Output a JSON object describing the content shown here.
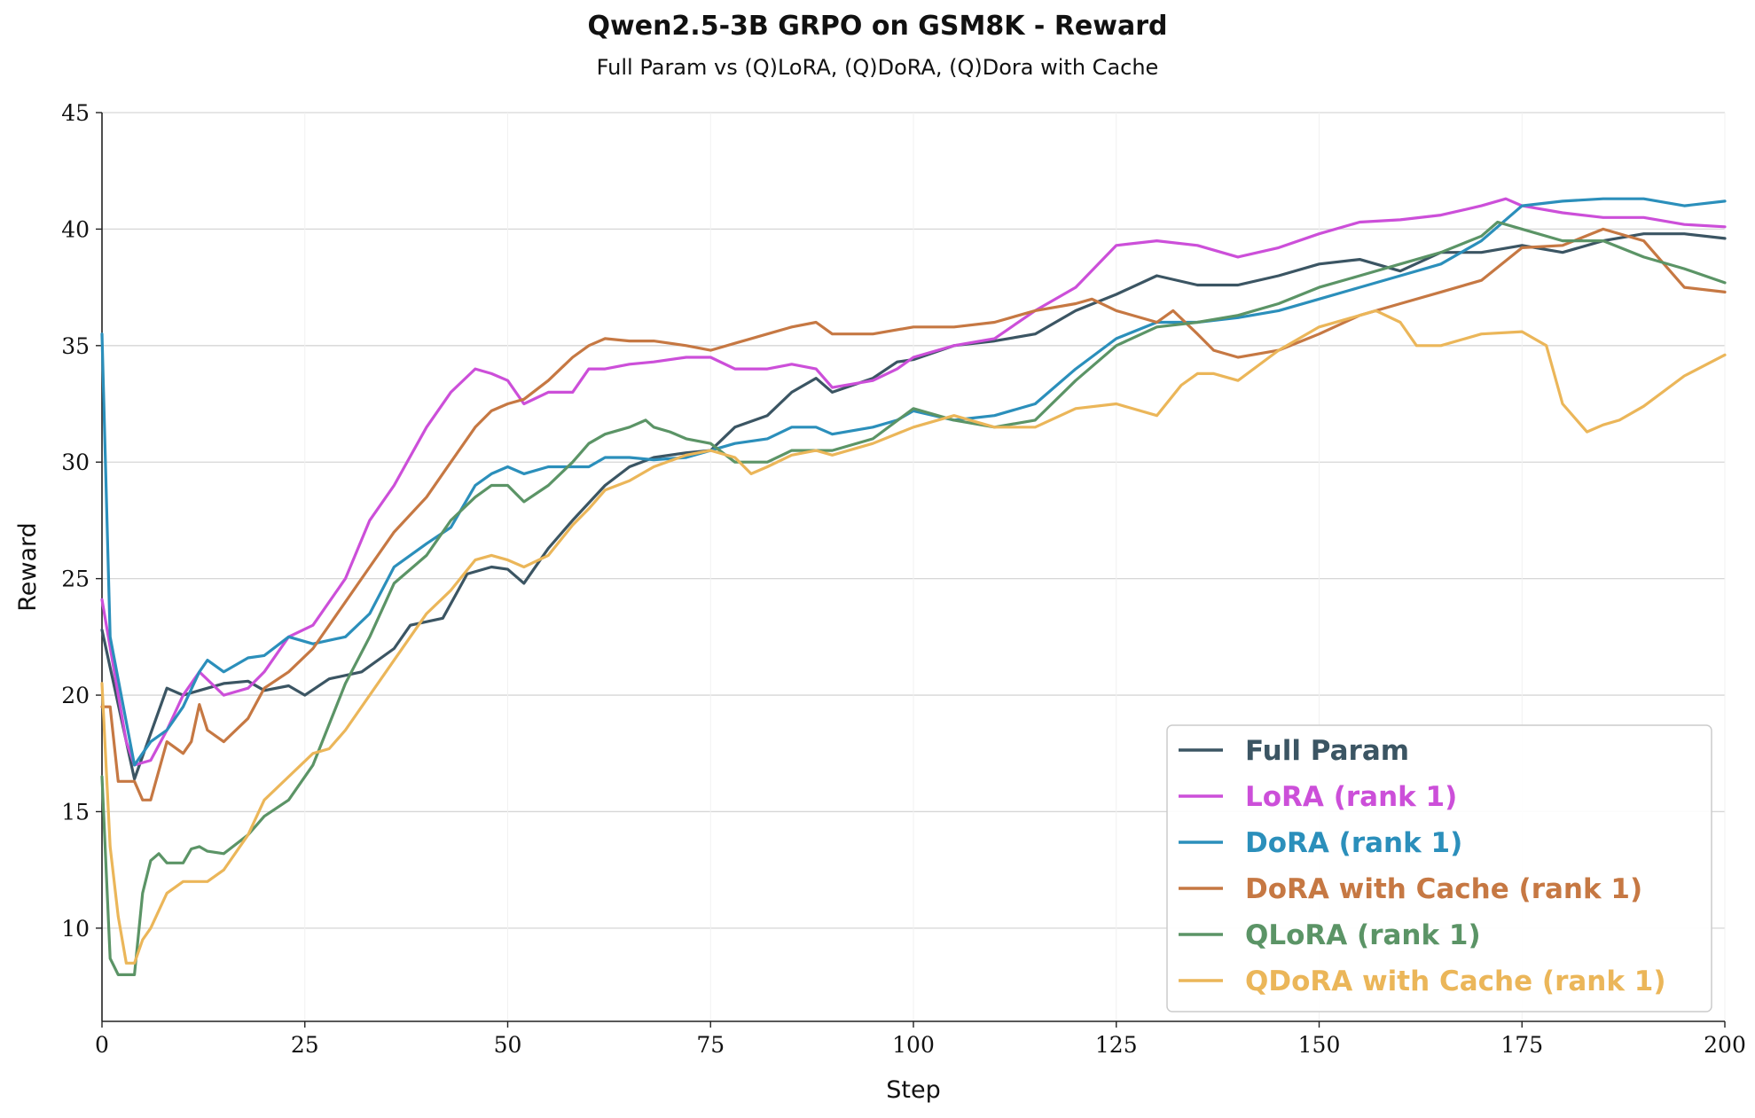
{
  "chart_data": {
    "type": "line",
    "title": "Qwen2.5-3B GRPO on GSM8K - Reward",
    "subtitle": "Full Param vs (Q)LoRA, (Q)DoRA, (Q)Dora with Cache",
    "xlabel": "Step",
    "ylabel": "Reward",
    "xlim": [
      0,
      200
    ],
    "ylim": [
      6,
      45
    ],
    "xticks": [
      0,
      25,
      50,
      75,
      100,
      125,
      150,
      175,
      200
    ],
    "yticks": [
      10,
      15,
      20,
      25,
      30,
      35,
      40,
      45
    ],
    "grid": "horizontal",
    "legend_position": "lower-right",
    "series": [
      {
        "name": "Full Param",
        "color": "#3b5563",
        "x": [
          0,
          4,
          8,
          10,
          12,
          15,
          18,
          20,
          23,
          25,
          28,
          32,
          36,
          38,
          42,
          45,
          48,
          50,
          52,
          55,
          58,
          62,
          65,
          68,
          72,
          75,
          78,
          82,
          85,
          88,
          90,
          95,
          98,
          100,
          105,
          110,
          115,
          120,
          125,
          130,
          135,
          140,
          145,
          150,
          155,
          160,
          165,
          170,
          175,
          180,
          185,
          190,
          195,
          200
        ],
        "y": [
          22.8,
          16.4,
          20.3,
          20.0,
          20.2,
          20.5,
          20.6,
          20.2,
          20.4,
          20.0,
          20.7,
          21.0,
          22.0,
          23.0,
          23.3,
          25.2,
          25.5,
          25.4,
          24.8,
          26.3,
          27.5,
          29.0,
          29.8,
          30.2,
          30.4,
          30.5,
          31.5,
          32.0,
          33.0,
          33.6,
          33.0,
          33.6,
          34.3,
          34.4,
          35.0,
          35.2,
          35.5,
          36.5,
          37.2,
          38.0,
          37.6,
          37.6,
          38.0,
          38.5,
          38.7,
          38.2,
          39.0,
          39.0,
          39.3,
          39.0,
          39.5,
          39.8,
          39.8,
          39.6
        ]
      },
      {
        "name": "LoRA (rank 1)",
        "color": "#cc4fd9",
        "x": [
          0,
          3,
          4,
          6,
          8,
          10,
          12,
          15,
          18,
          20,
          23,
          26,
          30,
          33,
          36,
          40,
          43,
          46,
          48,
          50,
          52,
          55,
          58,
          60,
          62,
          65,
          68,
          72,
          75,
          78,
          82,
          85,
          88,
          90,
          95,
          98,
          100,
          105,
          110,
          115,
          120,
          125,
          130,
          135,
          140,
          145,
          150,
          155,
          160,
          165,
          170,
          173,
          175,
          180,
          185,
          190,
          195,
          200
        ],
        "y": [
          24.1,
          18.0,
          17.0,
          17.2,
          18.5,
          20.0,
          21.0,
          20.0,
          20.3,
          21.0,
          22.5,
          23.0,
          25.0,
          27.5,
          29.0,
          31.5,
          33.0,
          34.0,
          33.8,
          33.5,
          32.5,
          33.0,
          33.0,
          34.0,
          34.0,
          34.2,
          34.3,
          34.5,
          34.5,
          34.0,
          34.0,
          34.2,
          34.0,
          33.2,
          33.5,
          34.0,
          34.5,
          35.0,
          35.3,
          36.5,
          37.5,
          39.3,
          39.5,
          39.3,
          38.8,
          39.2,
          39.8,
          40.3,
          40.4,
          40.6,
          41.0,
          41.3,
          41.0,
          40.7,
          40.5,
          40.5,
          40.2,
          40.1
        ]
      },
      {
        "name": "DoRA (rank 1)",
        "color": "#2b8fbb",
        "x": [
          0,
          1,
          4,
          6,
          8,
          10,
          12,
          13,
          15,
          18,
          20,
          23,
          26,
          30,
          33,
          36,
          40,
          43,
          46,
          48,
          50,
          52,
          55,
          58,
          60,
          62,
          65,
          68,
          72,
          75,
          78,
          82,
          85,
          88,
          90,
          95,
          98,
          100,
          105,
          110,
          115,
          120,
          125,
          130,
          135,
          140,
          145,
          150,
          155,
          160,
          165,
          170,
          175,
          180,
          185,
          190,
          195,
          200
        ],
        "y": [
          35.5,
          22.5,
          17.0,
          18.0,
          18.5,
          19.5,
          21.0,
          21.5,
          21.0,
          21.6,
          21.7,
          22.5,
          22.2,
          22.5,
          23.5,
          25.5,
          26.5,
          27.2,
          29.0,
          29.5,
          29.8,
          29.5,
          29.8,
          29.8,
          29.8,
          30.2,
          30.2,
          30.1,
          30.2,
          30.5,
          30.8,
          31.0,
          31.5,
          31.5,
          31.2,
          31.5,
          31.8,
          32.2,
          31.8,
          32.0,
          32.5,
          34.0,
          35.3,
          36.0,
          36.0,
          36.2,
          36.5,
          37.0,
          37.5,
          38.0,
          38.5,
          39.5,
          41.0,
          41.2,
          41.3,
          41.3,
          41.0,
          41.2
        ]
      },
      {
        "name": "DoRA with Cache (rank 1)",
        "color": "#c67843",
        "x": [
          0,
          1,
          2,
          4,
          5,
          6,
          8,
          10,
          11,
          12,
          13,
          15,
          18,
          20,
          23,
          26,
          30,
          33,
          36,
          40,
          43,
          46,
          48,
          50,
          52,
          55,
          58,
          60,
          62,
          65,
          68,
          72,
          75,
          78,
          82,
          85,
          88,
          90,
          95,
          100,
          105,
          110,
          115,
          120,
          122,
          125,
          130,
          132,
          135,
          137,
          140,
          145,
          150,
          155,
          160,
          165,
          170,
          175,
          180,
          185,
          190,
          195,
          200
        ],
        "y": [
          19.5,
          19.5,
          16.3,
          16.3,
          15.5,
          15.5,
          18.0,
          17.5,
          18.0,
          19.6,
          18.5,
          18.0,
          19.0,
          20.3,
          21.0,
          22.0,
          24.0,
          25.5,
          27.0,
          28.5,
          30.0,
          31.5,
          32.2,
          32.5,
          32.7,
          33.5,
          34.5,
          35.0,
          35.3,
          35.2,
          35.2,
          35.0,
          34.8,
          35.1,
          35.5,
          35.8,
          36.0,
          35.5,
          35.5,
          35.8,
          35.8,
          36.0,
          36.5,
          36.8,
          37.0,
          36.5,
          36.0,
          36.5,
          35.5,
          34.8,
          34.5,
          34.8,
          35.5,
          36.3,
          36.8,
          37.3,
          37.8,
          39.2,
          39.3,
          40.0,
          39.5,
          37.5,
          37.3
        ]
      },
      {
        "name": "QLoRA (rank 1)",
        "color": "#5b9466",
        "x": [
          0,
          1,
          2,
          4,
          5,
          6,
          7,
          8,
          10,
          11,
          12,
          13,
          15,
          18,
          20,
          23,
          26,
          30,
          33,
          36,
          40,
          43,
          46,
          48,
          50,
          52,
          55,
          58,
          60,
          62,
          65,
          67,
          68,
          70,
          72,
          75,
          78,
          82,
          85,
          88,
          90,
          95,
          100,
          105,
          110,
          115,
          120,
          125,
          130,
          135,
          140,
          145,
          150,
          155,
          160,
          165,
          170,
          172,
          175,
          180,
          185,
          190,
          195,
          200
        ],
        "y": [
          16.5,
          8.7,
          8.0,
          8.0,
          11.5,
          12.9,
          13.2,
          12.8,
          12.8,
          13.4,
          13.5,
          13.3,
          13.2,
          14.0,
          14.8,
          15.5,
          17.0,
          20.5,
          22.5,
          24.8,
          26.0,
          27.5,
          28.5,
          29.0,
          29.0,
          28.3,
          29.0,
          30.0,
          30.8,
          31.2,
          31.5,
          31.8,
          31.5,
          31.3,
          31.0,
          30.8,
          30.0,
          30.0,
          30.5,
          30.5,
          30.5,
          31.0,
          32.3,
          31.8,
          31.5,
          31.8,
          33.5,
          35.0,
          35.8,
          36.0,
          36.3,
          36.8,
          37.5,
          38.0,
          38.5,
          39.0,
          39.7,
          40.3,
          40.0,
          39.5,
          39.5,
          38.8,
          38.3,
          37.7
        ]
      },
      {
        "name": "QDoRA with Cache (rank 1)",
        "color": "#ebb659",
        "x": [
          0,
          1,
          2,
          3,
          4,
          5,
          6,
          8,
          10,
          12,
          13,
          15,
          18,
          20,
          23,
          26,
          28,
          30,
          33,
          36,
          40,
          43,
          46,
          48,
          50,
          52,
          55,
          58,
          60,
          62,
          65,
          68,
          72,
          75,
          78,
          80,
          82,
          85,
          88,
          90,
          95,
          100,
          105,
          110,
          115,
          120,
          125,
          130,
          133,
          135,
          137,
          140,
          145,
          150,
          155,
          157,
          160,
          162,
          165,
          170,
          175,
          178,
          180,
          183,
          185,
          187,
          190,
          195,
          200
        ],
        "y": [
          20.5,
          13.5,
          10.5,
          8.5,
          8.5,
          9.5,
          10.0,
          11.5,
          12.0,
          12.0,
          12.0,
          12.5,
          14.0,
          15.5,
          16.5,
          17.5,
          17.7,
          18.5,
          20.0,
          21.5,
          23.5,
          24.5,
          25.8,
          26.0,
          25.8,
          25.5,
          26.0,
          27.3,
          28.0,
          28.8,
          29.2,
          29.8,
          30.3,
          30.5,
          30.2,
          29.5,
          29.8,
          30.3,
          30.5,
          30.3,
          30.8,
          31.5,
          32.0,
          31.5,
          31.5,
          32.3,
          32.5,
          32.0,
          33.3,
          33.8,
          33.8,
          33.5,
          34.8,
          35.8,
          36.3,
          36.5,
          36.0,
          35.0,
          35.0,
          35.5,
          35.6,
          35.0,
          32.5,
          31.3,
          31.6,
          31.8,
          32.4,
          33.7,
          34.6
        ]
      }
    ]
  }
}
